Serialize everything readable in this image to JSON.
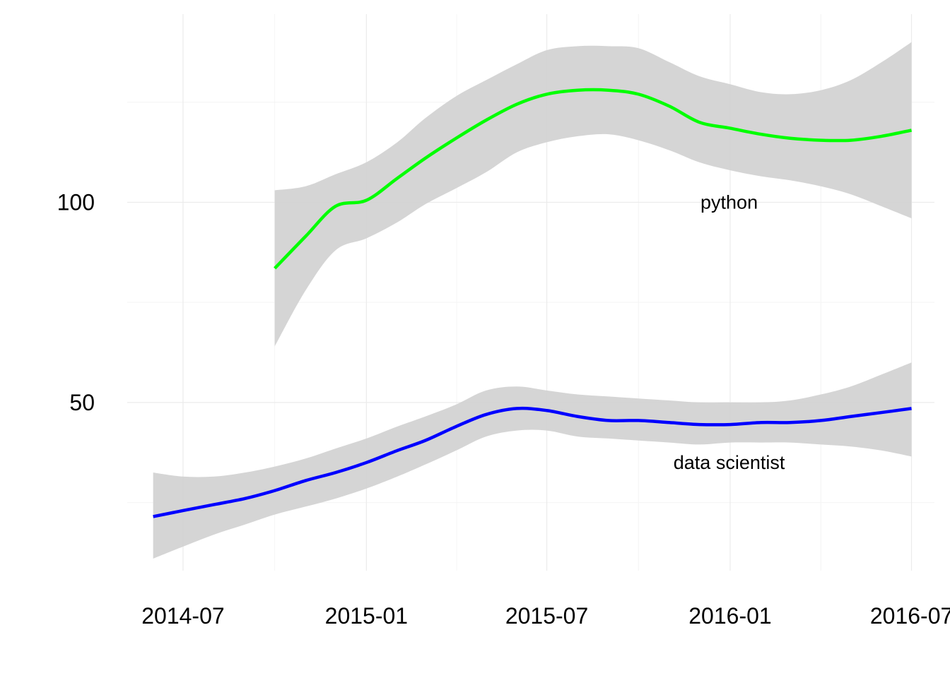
{
  "chart_data": {
    "type": "line",
    "title": "",
    "xlabel": "",
    "ylabel": "",
    "x_ticks": [
      "2014-07",
      "2015-01",
      "2015-07",
      "2016-01",
      "2016-07"
    ],
    "y_ticks": [
      "50",
      "100"
    ],
    "xlim": [
      "2014-05-06",
      "2016-07-24"
    ],
    "ylim": [
      8,
      147
    ],
    "grid": true,
    "legend": "none",
    "series": [
      {
        "name": "python",
        "color": "#00ff00",
        "ribbon_color": "#d3d3d3",
        "points": [
          {
            "x": "2014-10-01",
            "y": 83.5,
            "lo": 64,
            "hi": 103
          },
          {
            "x": "2014-11-01",
            "y": 91.5,
            "lo": 78,
            "hi": 104
          },
          {
            "x": "2014-12-01",
            "y": 99,
            "lo": 88,
            "hi": 107
          },
          {
            "x": "2015-01-01",
            "y": 100.5,
            "lo": 91,
            "hi": 110
          },
          {
            "x": "2015-02-01",
            "y": 106,
            "lo": 95,
            "hi": 115
          },
          {
            "x": "2015-03-01",
            "y": 111,
            "lo": 99.5,
            "hi": 121
          },
          {
            "x": "2015-04-01",
            "y": 116,
            "lo": 103.5,
            "hi": 126.5
          },
          {
            "x": "2015-05-01",
            "y": 120.5,
            "lo": 107.5,
            "hi": 130.5
          },
          {
            "x": "2015-06-01",
            "y": 124.5,
            "lo": 112.5,
            "hi": 134.5
          },
          {
            "x": "2015-07-01",
            "y": 127,
            "lo": 115,
            "hi": 138
          },
          {
            "x": "2015-08-01",
            "y": 128,
            "lo": 116.5,
            "hi": 139
          },
          {
            "x": "2015-09-01",
            "y": 128,
            "lo": 117,
            "hi": 139
          },
          {
            "x": "2015-10-01",
            "y": 127,
            "lo": 115.5,
            "hi": 138.5
          },
          {
            "x": "2015-11-01",
            "y": 124,
            "lo": 113,
            "hi": 135
          },
          {
            "x": "2015-12-01",
            "y": 120,
            "lo": 110,
            "hi": 131.5
          },
          {
            "x": "2016-01-01",
            "y": 118.5,
            "lo": 108,
            "hi": 129.5
          },
          {
            "x": "2016-02-01",
            "y": 117,
            "lo": 106.5,
            "hi": 127.5
          },
          {
            "x": "2016-03-01",
            "y": 116,
            "lo": 105.5,
            "hi": 127
          },
          {
            "x": "2016-04-01",
            "y": 115.5,
            "lo": 104,
            "hi": 128
          },
          {
            "x": "2016-05-01",
            "y": 115.5,
            "lo": 102,
            "hi": 130.5
          },
          {
            "x": "2016-06-01",
            "y": 116.5,
            "lo": 99,
            "hi": 135
          },
          {
            "x": "2016-07-01",
            "y": 118,
            "lo": 96,
            "hi": 140
          }
        ]
      },
      {
        "name": "data scientist",
        "color": "#0000ff",
        "ribbon_color": "#d3d3d3",
        "points": [
          {
            "x": "2014-06-01",
            "y": 21.5,
            "lo": 11,
            "hi": 32.5
          },
          {
            "x": "2014-07-01",
            "y": 23,
            "lo": 14,
            "hi": 31.5
          },
          {
            "x": "2014-08-01",
            "y": 24.5,
            "lo": 17,
            "hi": 31.5
          },
          {
            "x": "2014-09-01",
            "y": 26,
            "lo": 19.5,
            "hi": 32.5
          },
          {
            "x": "2014-10-01",
            "y": 28,
            "lo": 22,
            "hi": 34
          },
          {
            "x": "2014-11-01",
            "y": 30.5,
            "lo": 24,
            "hi": 36
          },
          {
            "x": "2014-12-01",
            "y": 32.5,
            "lo": 26,
            "hi": 38.5
          },
          {
            "x": "2015-01-01",
            "y": 35,
            "lo": 28.5,
            "hi": 41
          },
          {
            "x": "2015-02-01",
            "y": 38,
            "lo": 31.5,
            "hi": 44
          },
          {
            "x": "2015-03-01",
            "y": 40.5,
            "lo": 34.5,
            "hi": 46.5
          },
          {
            "x": "2015-04-01",
            "y": 44,
            "lo": 38,
            "hi": 49.5
          },
          {
            "x": "2015-05-01",
            "y": 47,
            "lo": 41.5,
            "hi": 53
          },
          {
            "x": "2015-06-01",
            "y": 48.5,
            "lo": 43,
            "hi": 54
          },
          {
            "x": "2015-07-01",
            "y": 48,
            "lo": 43,
            "hi": 53
          },
          {
            "x": "2015-08-01",
            "y": 46.5,
            "lo": 41.5,
            "hi": 52
          },
          {
            "x": "2015-09-01",
            "y": 45.5,
            "lo": 41,
            "hi": 51.5
          },
          {
            "x": "2015-10-01",
            "y": 45.5,
            "lo": 40.5,
            "hi": 51
          },
          {
            "x": "2015-11-01",
            "y": 45,
            "lo": 40,
            "hi": 50.5
          },
          {
            "x": "2015-12-01",
            "y": 44.5,
            "lo": 39.5,
            "hi": 50
          },
          {
            "x": "2016-01-01",
            "y": 44.5,
            "lo": 40,
            "hi": 50
          },
          {
            "x": "2016-02-01",
            "y": 45,
            "lo": 40,
            "hi": 50
          },
          {
            "x": "2016-03-01",
            "y": 45,
            "lo": 40,
            "hi": 50.5
          },
          {
            "x": "2016-04-01",
            "y": 45.5,
            "lo": 39.5,
            "hi": 52
          },
          {
            "x": "2016-05-01",
            "y": 46.5,
            "lo": 39,
            "hi": 54
          },
          {
            "x": "2016-06-01",
            "y": 47.5,
            "lo": 38,
            "hi": 57
          },
          {
            "x": "2016-07-01",
            "y": 48.5,
            "lo": 36.5,
            "hi": 60
          }
        ]
      }
    ],
    "annotations": [
      {
        "text": "python",
        "x": "2015-12-31",
        "y": 100
      },
      {
        "text": "data scientist",
        "x": "2015-12-31",
        "y": 35
      }
    ]
  }
}
